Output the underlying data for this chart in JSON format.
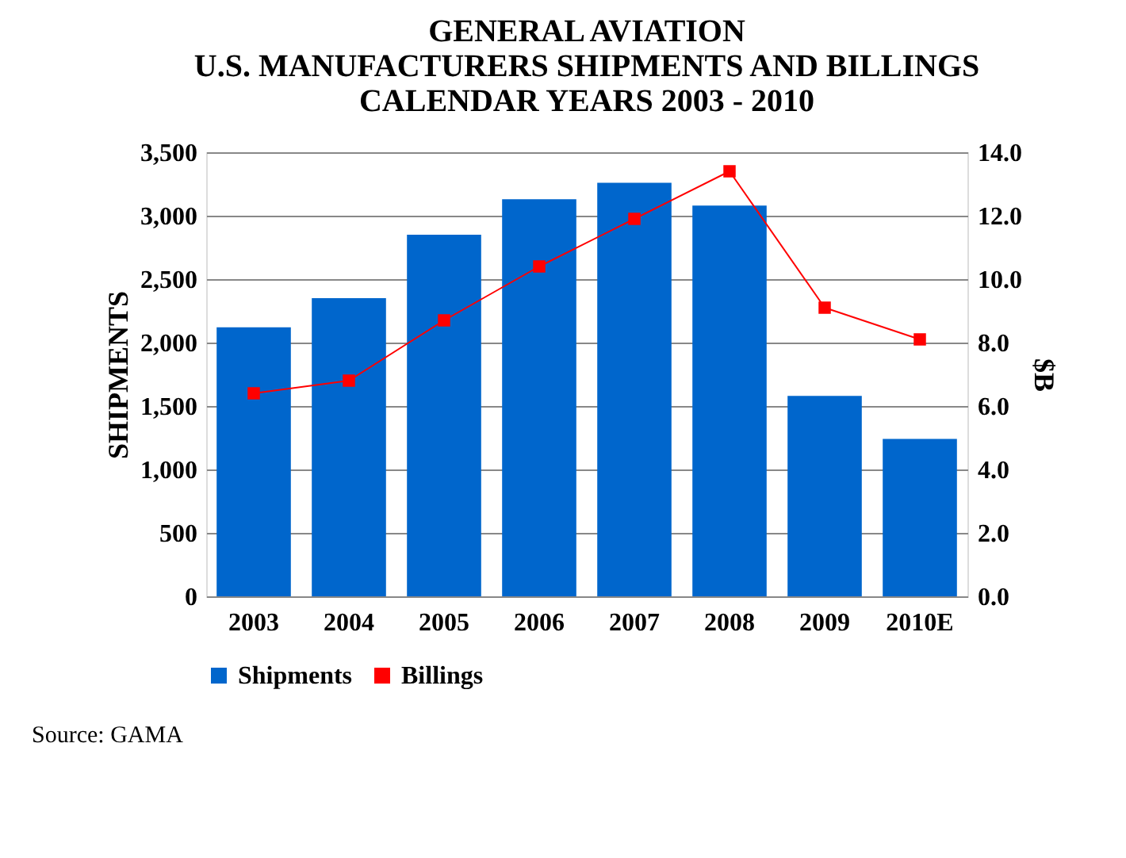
{
  "chart_data": {
    "type": "bar",
    "title": [
      "GENERAL AVIATION",
      "U.S. MANUFACTURERS SHIPMENTS AND BILLINGS",
      "CALENDAR YEARS 2003 - 2010"
    ],
    "categories": [
      "2003",
      "2004",
      "2005",
      "2006",
      "2007",
      "2008",
      "2009",
      "2010E"
    ],
    "ylabel": "SHIPMENTS",
    "y2label": "$B",
    "series": [
      {
        "name": "Shipments",
        "color": "#0066cc",
        "values": [
          2120,
          2350,
          2850,
          3130,
          3260,
          3080,
          1580,
          1240
        ]
      },
      {
        "name": "Billings",
        "type": "line",
        "axis": "y2",
        "color": "#ff0000",
        "marker": "square",
        "values": [
          6.4,
          6.8,
          8.7,
          10.4,
          11.9,
          13.4,
          9.1,
          8.1
        ]
      }
    ],
    "ylim": [
      0,
      3500
    ],
    "yticks": [
      {
        "value": 0,
        "label": "0"
      },
      {
        "value": 500,
        "label": "500"
      },
      {
        "value": 1000,
        "label": "1,000"
      },
      {
        "value": 1500,
        "label": "1,500"
      },
      {
        "value": 2000,
        "label": "2,000"
      },
      {
        "value": 2500,
        "label": "2,500"
      },
      {
        "value": 3000,
        "label": "3,000"
      },
      {
        "value": 3500,
        "label": "3,500"
      }
    ],
    "y2lim": [
      0,
      14
    ],
    "y2ticks": [
      {
        "value": 0,
        "label": "0.0"
      },
      {
        "value": 2,
        "label": "2.0"
      },
      {
        "value": 4,
        "label": "4.0"
      },
      {
        "value": 6,
        "label": "6.0"
      },
      {
        "value": 8,
        "label": "8.0"
      },
      {
        "value": 10,
        "label": "10.0"
      },
      {
        "value": 12,
        "label": "12.0"
      },
      {
        "value": 14,
        "label": "14.0"
      }
    ],
    "grid": "y",
    "legend": "bottom",
    "annotations": [
      "Source: GAMA"
    ]
  }
}
